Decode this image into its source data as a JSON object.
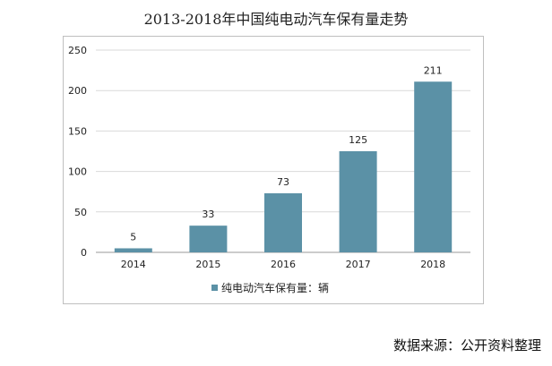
{
  "title": "2013-2018年中国纯电动汽车保有量走势",
  "source": "数据来源：公开资料整理",
  "chart_data": {
    "type": "bar",
    "title": "2013-2018年中国纯电动汽车保有量走势",
    "categories": [
      "2014",
      "2015",
      "2016",
      "2017",
      "2018"
    ],
    "series": [
      {
        "name": "纯电动汽车保有量：辆",
        "values": [
          5,
          33,
          73,
          125,
          211
        ],
        "color": "#5b91a6"
      }
    ],
    "data_labels": [
      "5",
      "33",
      "73",
      "125",
      "211"
    ],
    "ylim": [
      0,
      250
    ],
    "yticks": [
      0,
      50,
      100,
      150,
      200,
      250
    ],
    "grid": true,
    "legend_position": "bottom",
    "xlabel": "",
    "ylabel": ""
  }
}
